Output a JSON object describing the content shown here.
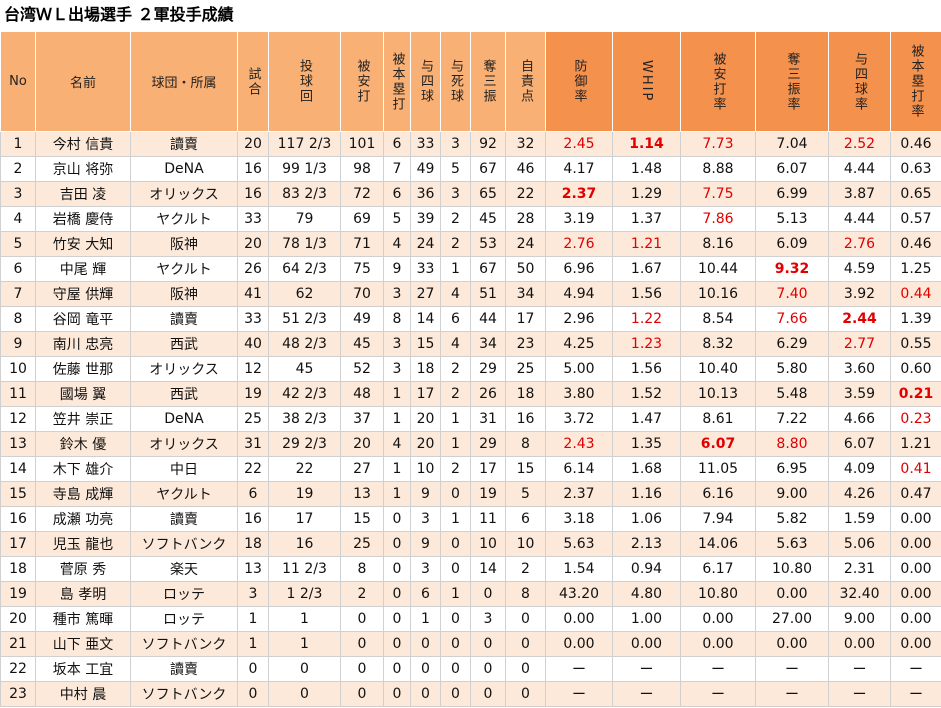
{
  "title": "台湾ＷＬ出場選手 ２軍投手成績",
  "table": {
    "header_colors": [
      "#f9b074",
      "#f9b074",
      "#f9b074",
      "#f9b074",
      "#f9b074",
      "#f9b074",
      "#f9b074",
      "#f9b074",
      "#f9b074",
      "#f9b074",
      "#f9b074",
      "#f4914c",
      "#f4914c",
      "#f4914c",
      "#f4914c",
      "#f4914c",
      "#f4914c"
    ],
    "headers": [
      "No",
      "名前",
      "球団・所属",
      "試合",
      "投球回",
      "被安打",
      "被本塁打",
      "与四球",
      "与死球",
      "奪三振",
      "自責点",
      "防御率",
      "WHIP",
      "被安打率",
      "奪三振率",
      "与四球率",
      "被本塁打率"
    ],
    "rows": [
      [
        "1",
        "今村 信貴",
        "讀賣",
        "20",
        "117 2/3",
        "101",
        "6",
        "33",
        "3",
        "92",
        "32",
        {
          "text": "2.45",
          "color": "#e00000"
        },
        {
          "text": "1.14",
          "color": "#e00000",
          "bold": true
        },
        {
          "text": "7.73",
          "color": "#e00000"
        },
        "7.04",
        {
          "text": "2.52",
          "color": "#e00000"
        },
        "0.46"
      ],
      [
        "2",
        "京山 将弥",
        "DeNA",
        "16",
        "99 1/3",
        "98",
        "7",
        "49",
        "5",
        "67",
        "46",
        "4.17",
        "1.48",
        "8.88",
        "6.07",
        "4.44",
        "0.63"
      ],
      [
        "3",
        "吉田 凌",
        "オリックス",
        "16",
        "83 2/3",
        "72",
        "6",
        "36",
        "3",
        "65",
        "22",
        {
          "text": "2.37",
          "color": "#e00000",
          "bold": true
        },
        "1.29",
        {
          "text": "7.75",
          "color": "#e00000"
        },
        "6.99",
        "3.87",
        "0.65"
      ],
      [
        "4",
        "岩橋 慶侍",
        "ヤクルト",
        "33",
        "79",
        "69",
        "5",
        "39",
        "2",
        "45",
        "28",
        "3.19",
        "1.37",
        {
          "text": "7.86",
          "color": "#e00000"
        },
        "5.13",
        "4.44",
        "0.57"
      ],
      [
        "5",
        "竹安 大知",
        "阪神",
        "20",
        "78 1/3",
        "71",
        "4",
        "24",
        "2",
        "53",
        "24",
        {
          "text": "2.76",
          "color": "#e00000"
        },
        {
          "text": "1.21",
          "color": "#e00000"
        },
        "8.16",
        "6.09",
        {
          "text": "2.76",
          "color": "#e00000"
        },
        "0.46"
      ],
      [
        "6",
        "中尾 輝",
        "ヤクルト",
        "26",
        "64 2/3",
        "75",
        "9",
        "33",
        "1",
        "67",
        "50",
        "6.96",
        "1.67",
        "10.44",
        {
          "text": "9.32",
          "color": "#e00000",
          "bold": true
        },
        "4.59",
        "1.25"
      ],
      [
        "7",
        "守屋 供輝",
        "阪神",
        "41",
        "62",
        "70",
        "3",
        "27",
        "4",
        "51",
        "34",
        "4.94",
        "1.56",
        "10.16",
        {
          "text": "7.40",
          "color": "#e00000"
        },
        "3.92",
        {
          "text": "0.44",
          "color": "#e00000"
        }
      ],
      [
        "8",
        "谷岡 竜平",
        "讀賣",
        "33",
        "51 2/3",
        "49",
        "8",
        "14",
        "6",
        "44",
        "17",
        "2.96",
        {
          "text": "1.22",
          "color": "#e00000"
        },
        "8.54",
        {
          "text": "7.66",
          "color": "#e00000"
        },
        {
          "text": "2.44",
          "color": "#e00000",
          "bold": true
        },
        "1.39"
      ],
      [
        "9",
        "南川 忠亮",
        "西武",
        "40",
        "48 2/3",
        "45",
        "3",
        "15",
        "4",
        "34",
        "23",
        "4.25",
        {
          "text": "1.23",
          "color": "#e00000"
        },
        "8.32",
        "6.29",
        {
          "text": "2.77",
          "color": "#e00000"
        },
        "0.55"
      ],
      [
        "10",
        "佐藤 世那",
        "オリックス",
        "12",
        "45",
        "52",
        "3",
        "18",
        "2",
        "29",
        "25",
        "5.00",
        "1.56",
        "10.40",
        "5.80",
        "3.60",
        "0.60"
      ],
      [
        "11",
        "國場 翼",
        "西武",
        "19",
        "42 2/3",
        "48",
        "1",
        "17",
        "2",
        "26",
        "18",
        "3.80",
        "1.52",
        "10.13",
        "5.48",
        "3.59",
        {
          "text": "0.21",
          "color": "#e00000",
          "bold": true
        }
      ],
      [
        "12",
        "笠井 崇正",
        "DeNA",
        "25",
        "38 2/3",
        "37",
        "1",
        "20",
        "1",
        "31",
        "16",
        "3.72",
        "1.47",
        "8.61",
        "7.22",
        "4.66",
        {
          "text": "0.23",
          "color": "#e00000"
        }
      ],
      [
        "13",
        "鈴木 優",
        "オリックス",
        "31",
        "29 2/3",
        "20",
        "4",
        "20",
        "1",
        "29",
        "8",
        {
          "text": "2.43",
          "color": "#e00000"
        },
        "1.35",
        {
          "text": "6.07",
          "color": "#e00000",
          "bold": true
        },
        {
          "text": "8.80",
          "color": "#e00000"
        },
        "6.07",
        "1.21"
      ],
      [
        "14",
        "木下 雄介",
        "中日",
        "22",
        "22",
        "27",
        "1",
        "10",
        "2",
        "17",
        "15",
        "6.14",
        "1.68",
        "11.05",
        "6.95",
        "4.09",
        {
          "text": "0.41",
          "color": "#e00000"
        }
      ],
      [
        "15",
        "寺島 成輝",
        "ヤクルト",
        "6",
        "19",
        "13",
        "1",
        "9",
        "0",
        "19",
        "5",
        "2.37",
        "1.16",
        "6.16",
        "9.00",
        "4.26",
        "0.47"
      ],
      [
        "16",
        "成瀬 功亮",
        "讀賣",
        "16",
        "17",
        "15",
        "0",
        "3",
        "1",
        "11",
        "6",
        "3.18",
        "1.06",
        "7.94",
        "5.82",
        "1.59",
        "0.00"
      ],
      [
        "17",
        "児玉 龍也",
        "ソフトバンク",
        "18",
        "16",
        "25",
        "0",
        "9",
        "0",
        "10",
        "10",
        "5.63",
        "2.13",
        "14.06",
        "5.63",
        "5.06",
        "0.00"
      ],
      [
        "18",
        "菅原 秀",
        "楽天",
        "13",
        "11 2/3",
        "8",
        "0",
        "3",
        "0",
        "14",
        "2",
        "1.54",
        "0.94",
        "6.17",
        "10.80",
        "2.31",
        "0.00"
      ],
      [
        "19",
        "島 孝明",
        "ロッテ",
        "3",
        "1 2/3",
        "2",
        "0",
        "6",
        "1",
        "0",
        "8",
        "43.20",
        "4.80",
        "10.80",
        "0.00",
        "32.40",
        "0.00"
      ],
      [
        "20",
        "種市 篤暉",
        "ロッテ",
        "1",
        "1",
        "0",
        "0",
        "1",
        "0",
        "3",
        "0",
        "0.00",
        "1.00",
        "0.00",
        "27.00",
        "9.00",
        "0.00"
      ],
      [
        "21",
        "山下 亜文",
        "ソフトバンク",
        "1",
        "1",
        "0",
        "0",
        "0",
        "0",
        "0",
        "0",
        "0.00",
        "0.00",
        "0.00",
        "0.00",
        "0.00",
        "0.00"
      ],
      [
        "22",
        "坂本 工宜",
        "讀賣",
        "0",
        "0",
        "0",
        "0",
        "0",
        "0",
        "0",
        "0",
        "ー",
        "ー",
        "ー",
        "ー",
        "ー",
        "ー"
      ],
      [
        "23",
        "中村 晨",
        "ソフトバンク",
        "0",
        "0",
        "0",
        "0",
        "0",
        "0",
        "0",
        "0",
        "ー",
        "ー",
        "ー",
        "ー",
        "ー",
        "ー"
      ]
    ]
  }
}
